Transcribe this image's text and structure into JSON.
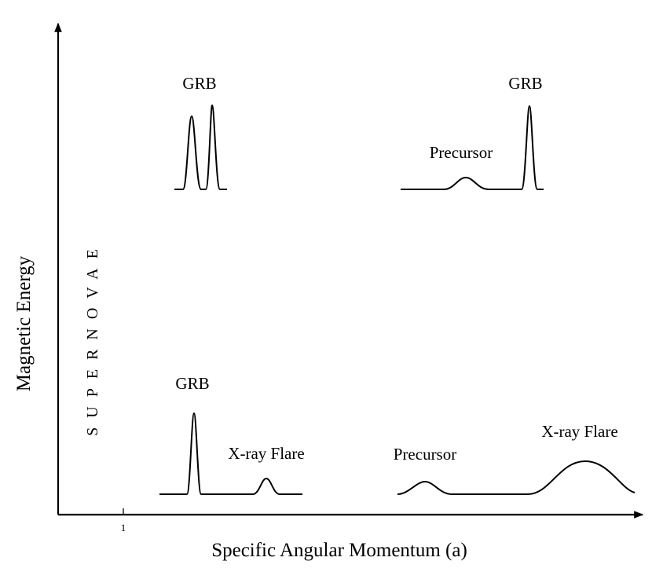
{
  "diagram": {
    "x_axis_label": "Specific Angular Momentum (a)",
    "y_axis_label": "Magnetic Energy",
    "x_tick_label": "1",
    "supernovae_label": "SUPERNOVAE",
    "panels": {
      "top_left": {
        "label": "GRB"
      },
      "top_right": {
        "precursor_label": "Precursor",
        "grb_label": "GRB"
      },
      "bottom_left": {
        "grb_label": "GRB",
        "flare_label": "X-ray Flare"
      },
      "bottom_right": {
        "precursor_label": "Precursor",
        "flare_label": "X-ray Flare"
      }
    },
    "colors": {
      "ink": "#000000",
      "background": "#ffffff"
    }
  }
}
